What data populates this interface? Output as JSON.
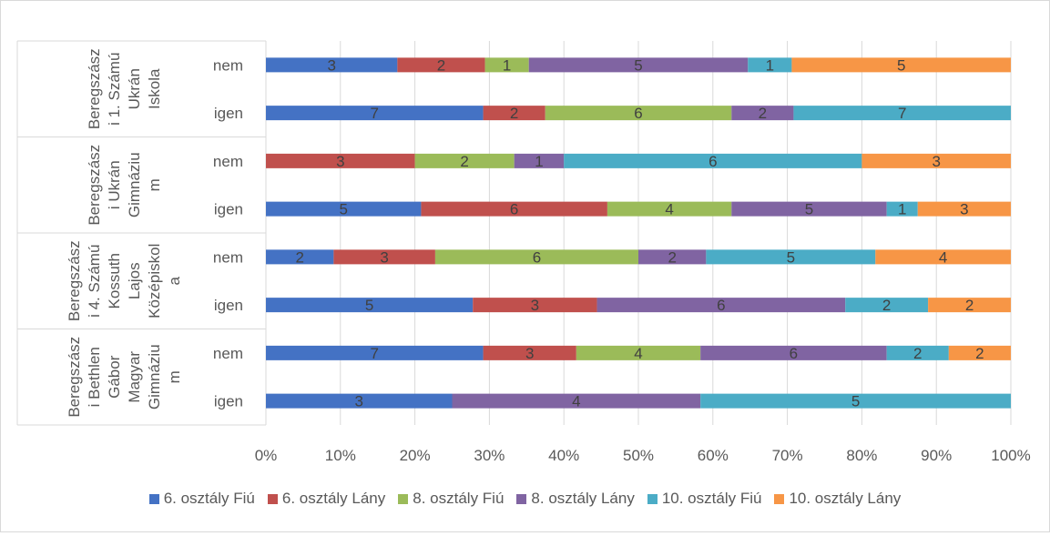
{
  "chart_data": {
    "type": "bar",
    "stacked": "percent",
    "orientation": "horizontal",
    "xlim": [
      0,
      100
    ],
    "x_ticks": [
      "0%",
      "10%",
      "20%",
      "30%",
      "40%",
      "50%",
      "60%",
      "70%",
      "80%",
      "90%",
      "100%"
    ],
    "grid": true,
    "legend_position": "bottom",
    "series": [
      {
        "name": "6. osztály Fiú",
        "color": "#4472c4"
      },
      {
        "name": "6. osztály Lány",
        "color": "#c0504d"
      },
      {
        "name": "8. osztály Fiú",
        "color": "#9bbb59"
      },
      {
        "name": "8. osztály  Lány",
        "color": "#8064a2"
      },
      {
        "name": "10. osztály Fiú",
        "color": "#4bacc6"
      },
      {
        "name": "10. osztály Lány",
        "color": "#f79646"
      }
    ],
    "groups": [
      {
        "label": [
          "Beregszász",
          "i 1. Számú",
          "Ukrán",
          "Iskola"
        ],
        "rows": [
          {
            "label": "nem",
            "values": [
              3,
              2,
              1,
              5,
              1,
              5
            ]
          },
          {
            "label": "igen",
            "values": [
              7,
              2,
              6,
              2,
              7,
              0
            ]
          }
        ]
      },
      {
        "label": [
          "Beregszász",
          "i Ukrán",
          "Gimnáziu",
          "m"
        ],
        "rows": [
          {
            "label": "nem",
            "values": [
              0,
              3,
              2,
              1,
              6,
              3
            ]
          },
          {
            "label": "igen",
            "values": [
              5,
              6,
              4,
              5,
              1,
              3
            ]
          }
        ]
      },
      {
        "label": [
          "Beregszász",
          "i 4. Számú",
          "Kossuth",
          "Lajos",
          "Középiskol",
          "a"
        ],
        "rows": [
          {
            "label": "nem",
            "values": [
              2,
              3,
              6,
              2,
              5,
              4
            ]
          },
          {
            "label": "igen",
            "values": [
              5,
              3,
              0,
              6,
              2,
              2
            ]
          }
        ]
      },
      {
        "label": [
          "Beregszász",
          "i Bethlen",
          "Gábor",
          "Magyar",
          "Gimnáziu",
          "m"
        ],
        "rows": [
          {
            "label": "nem",
            "values": [
              7,
              3,
              4,
              6,
              2,
              2
            ]
          },
          {
            "label": "igen",
            "values": [
              3,
              0,
              0,
              4,
              5,
              0
            ]
          }
        ]
      }
    ]
  }
}
